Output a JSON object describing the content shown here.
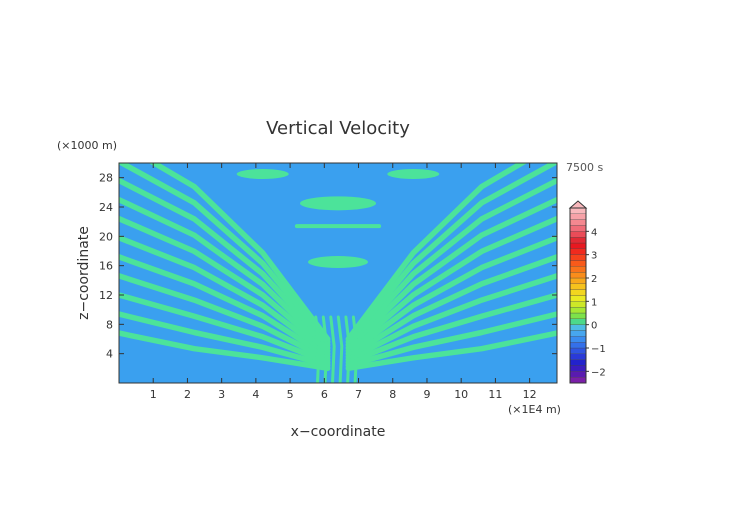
{
  "chart_data": {
    "type": "heatmap",
    "title": "Vertical Velocity",
    "xlabel": "x−coordinate",
    "ylabel": "z−coordinate",
    "x_unit": "(×1E4 m)",
    "y_unit": "(×1000 m)",
    "time_label": "7500 s",
    "xlim": [
      0,
      12.8
    ],
    "ylim": [
      0,
      30
    ],
    "x_ticks": [
      "1",
      "2",
      "3",
      "4",
      "5",
      "6",
      "7",
      "8",
      "9",
      "10",
      "11",
      "12"
    ],
    "y_ticks": [
      "4",
      "8",
      "12",
      "16",
      "20",
      "24",
      "28"
    ],
    "colorbar": {
      "labels": [
        "4",
        "3",
        "2",
        "1",
        "0",
        "−1",
        "−2"
      ],
      "range": [
        -2.5,
        5.0
      ],
      "levels": [
        -2.5,
        -2.25,
        -2.0,
        -1.75,
        -1.5,
        -1.25,
        -1.0,
        -0.75,
        -0.5,
        -0.25,
        0,
        0.25,
        0.5,
        0.75,
        1.0,
        1.25,
        1.5,
        1.75,
        2.0,
        2.25,
        2.5,
        2.75,
        3.0,
        3.25,
        3.5,
        3.75,
        4.0,
        4.25,
        4.5,
        4.75,
        5.0
      ],
      "colors": [
        "#7a1fa8",
        "#5a1bb0",
        "#3a1cc0",
        "#2222cc",
        "#2a3ad8",
        "#2f55e2",
        "#3470ea",
        "#3a8cf0",
        "#47a6ef",
        "#4ebde4",
        "#4cd98a",
        "#7de24a",
        "#a6e834",
        "#cde828",
        "#eaea22",
        "#f2d61f",
        "#f6c21d",
        "#f8a81b",
        "#f98d1b",
        "#f9731a",
        "#f85a1a",
        "#f5421c",
        "#f02a1e",
        "#e81820",
        "#e22a34",
        "#ea4c58",
        "#f06c78",
        "#f48890",
        "#f7a2a8",
        "#f9b8bc"
      ]
    },
    "field_colors": {
      "negative": "#3aa0ef",
      "positive": "#4ce39a"
    }
  }
}
